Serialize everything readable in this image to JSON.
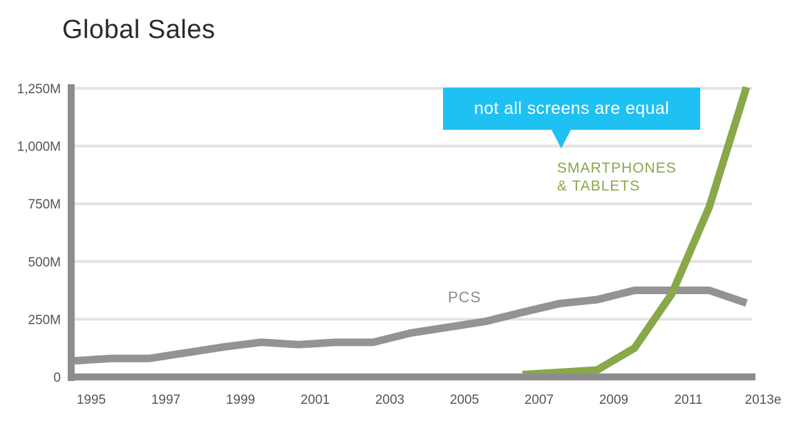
{
  "chart_data": {
    "type": "line",
    "title": "Global Sales",
    "xlabel": "",
    "ylabel": "",
    "ylim": [
      0,
      1250
    ],
    "y_ticks": [
      {
        "value": 0,
        "label": "0"
      },
      {
        "value": 250,
        "label": "250M"
      },
      {
        "value": 500,
        "label": "500M"
      },
      {
        "value": 750,
        "label": "750M"
      },
      {
        "value": 1000,
        "label": "1,000M"
      },
      {
        "value": 1250,
        "label": "1,250M"
      }
    ],
    "x_range": [
      1995,
      2013
    ],
    "x_ticks": [
      {
        "value": 1995,
        "label": "1995"
      },
      {
        "value": 1997,
        "label": "1997"
      },
      {
        "value": 1999,
        "label": "1999"
      },
      {
        "value": 2001,
        "label": "2001"
      },
      {
        "value": 2003,
        "label": "2003"
      },
      {
        "value": 2005,
        "label": "2005"
      },
      {
        "value": 2007,
        "label": "2007"
      },
      {
        "value": 2009,
        "label": "2009"
      },
      {
        "value": 2011,
        "label": "2011"
      },
      {
        "value": 2013,
        "label": "2013e"
      }
    ],
    "series": [
      {
        "name": "PCS",
        "color": "#939395",
        "points": [
          {
            "x": 1995,
            "y": 70
          },
          {
            "x": 1996,
            "y": 80
          },
          {
            "x": 1997,
            "y": 80
          },
          {
            "x": 1998,
            "y": 105
          },
          {
            "x": 1999,
            "y": 130
          },
          {
            "x": 2000,
            "y": 150
          },
          {
            "x": 2001,
            "y": 140
          },
          {
            "x": 2002,
            "y": 150
          },
          {
            "x": 2003,
            "y": 150
          },
          {
            "x": 2004,
            "y": 190
          },
          {
            "x": 2005,
            "y": 215
          },
          {
            "x": 2006,
            "y": 240
          },
          {
            "x": 2007,
            "y": 280
          },
          {
            "x": 2008,
            "y": 318
          },
          {
            "x": 2009,
            "y": 335
          },
          {
            "x": 2010,
            "y": 375
          },
          {
            "x": 2011,
            "y": 375
          },
          {
            "x": 2012,
            "y": 375
          },
          {
            "x": 2013,
            "y": 320
          }
        ]
      },
      {
        "name": "SMARTPHONES & TABLETS",
        "label_lines": [
          "SMARTPHONES",
          "& TABLETS"
        ],
        "color": "#88a84a",
        "points": [
          {
            "x": 2007,
            "y": 10
          },
          {
            "x": 2008,
            "y": 20
          },
          {
            "x": 2009,
            "y": 30
          },
          {
            "x": 2010,
            "y": 125
          },
          {
            "x": 2011,
            "y": 360
          },
          {
            "x": 2012,
            "y": 735
          },
          {
            "x": 2013,
            "y": 1255
          }
        ]
      }
    ],
    "annotations": [
      {
        "text": "not all screens are equal"
      }
    ]
  },
  "colors": {
    "grid": "#e3e3e3",
    "axis": "#8d8d8f",
    "callout": "#1fc0f2"
  }
}
